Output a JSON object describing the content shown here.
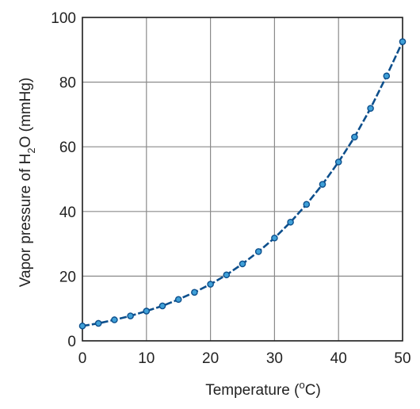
{
  "chart_data": {
    "type": "line",
    "title": "",
    "xlabel_text": "Temperature  (",
    "xlabel_unit_sup": "o",
    "xlabel_unit": "C)",
    "ylabel_prefix": "Vapor pressure of H",
    "ylabel_sub": "2",
    "ylabel_mid": "O  (mmHg)",
    "xlim": [
      0,
      50
    ],
    "ylim": [
      0,
      100
    ],
    "x_ticks": [
      "0",
      "10",
      "20",
      "30",
      "40",
      "50"
    ],
    "y_ticks": [
      "0",
      "20",
      "40",
      "60",
      "80",
      "100"
    ],
    "grid": true,
    "series": [
      {
        "x": [
          0,
          2.5,
          5,
          7.5,
          10,
          12.5,
          15,
          17.5,
          20,
          22.5,
          25,
          27.5,
          30,
          32.5,
          35,
          37.5,
          40,
          42.5,
          45,
          47.5,
          50
        ],
        "y": [
          4.6,
          5.4,
          6.5,
          7.7,
          9.2,
          10.8,
          12.8,
          15.0,
          17.5,
          20.4,
          23.8,
          27.6,
          31.8,
          36.7,
          42.2,
          48.4,
          55.3,
          63.0,
          71.9,
          81.9,
          92.5
        ]
      }
    ],
    "colors": {
      "line": "#0d4f8c",
      "marker_fill": "#3fa0d8",
      "grid": "#8a8a8a",
      "axis": "#222222"
    }
  }
}
